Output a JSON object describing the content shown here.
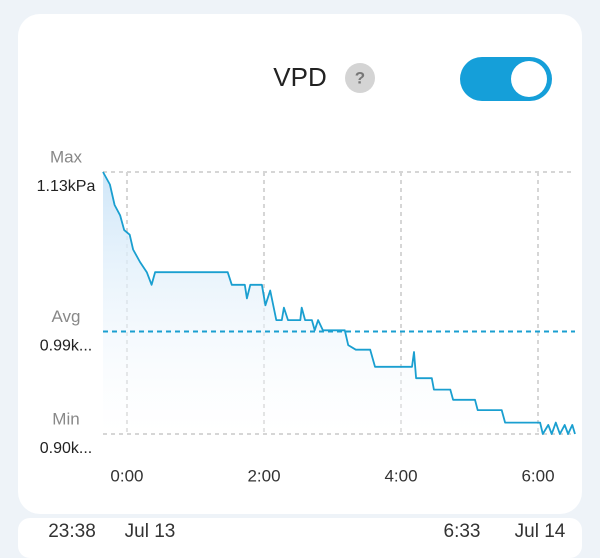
{
  "chart_data": {
    "type": "line",
    "title": "VPD",
    "help_icon": "?",
    "x": [
      -0.35,
      -0.25,
      -0.18,
      -0.1,
      -0.04,
      0.04,
      0.09,
      0.19,
      0.29,
      0.36,
      0.41,
      1.47,
      1.53,
      1.72,
      1.75,
      1.8,
      1.97,
      2.02,
      2.09,
      2.18,
      2.26,
      2.29,
      2.35,
      2.53,
      2.55,
      2.6,
      2.7,
      2.74,
      2.79,
      2.86,
      3.18,
      3.23,
      3.34,
      3.55,
      3.62,
      4.16,
      4.19,
      4.22,
      4.45,
      4.48,
      4.72,
      4.76,
      5.08,
      5.12,
      5.47,
      5.52,
      6.03,
      6.07,
      6.15,
      6.2,
      6.26,
      6.32,
      6.39,
      6.44,
      6.5,
      6.54
    ],
    "series": [
      {
        "name": "VPD",
        "color": "#1a9fd0",
        "values": [
          1.13,
          1.119,
          1.101,
          1.092,
          1.079,
          1.075,
          1.062,
          1.051,
          1.042,
          1.031,
          1.042,
          1.042,
          1.031,
          1.031,
          1.019,
          1.031,
          1.031,
          1.013,
          1.026,
          1.0,
          1.0,
          1.011,
          1.0,
          1.0,
          1.011,
          1.0,
          1.0,
          0.991,
          1.0,
          0.991,
          0.991,
          0.978,
          0.974,
          0.974,
          0.959,
          0.959,
          0.972,
          0.949,
          0.949,
          0.939,
          0.939,
          0.93,
          0.93,
          0.921,
          0.921,
          0.91,
          0.91,
          0.9,
          0.908,
          0.9,
          0.91,
          0.9,
          0.908,
          0.9,
          0.908,
          0.9
        ]
      }
    ],
    "xlim": [
      -0.35,
      6.54
    ],
    "xticks": [
      {
        "value": 0,
        "label": "0:00"
      },
      {
        "value": 2,
        "label": "2:00"
      },
      {
        "value": 4,
        "label": "4:00"
      },
      {
        "value": 6,
        "label": "6:00"
      }
    ],
    "ylim": [
      0.9,
      1.13
    ],
    "yticks": [
      {
        "value": 1.13,
        "label": "1.13kPa"
      },
      {
        "value": 0.99,
        "label": "0.99k..."
      },
      {
        "value": 0.9,
        "label": "0.90k..."
      }
    ],
    "ytick_names": [
      "Max",
      "Avg",
      "Min"
    ],
    "range_start": [
      "23:38",
      "Jul 13"
    ],
    "range_end": [
      "6:33",
      "Jul 14"
    ],
    "toggle_on": true,
    "grid": true
  }
}
